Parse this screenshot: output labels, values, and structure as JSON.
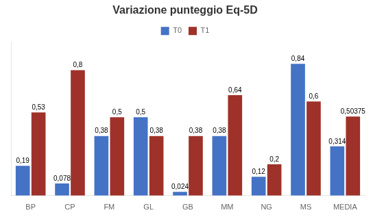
{
  "chart_data": {
    "type": "bar",
    "title": "Variazione punteggio Eq-5D",
    "categories": [
      "BP",
      "CP",
      "FM",
      "GL",
      "GB",
      "MM",
      "NG",
      "MS",
      "MEDIA"
    ],
    "series": [
      {
        "name": "T0",
        "color": "#4472C4",
        "values": [
          0.19,
          0.078,
          0.38,
          0.5,
          0.024,
          0.38,
          0.12,
          0.84,
          0.314
        ],
        "value_labels": [
          "0,19",
          "0,078",
          "0,38",
          "0,5",
          "0,024",
          "0,38",
          "0,12",
          "0,84",
          "0,314"
        ]
      },
      {
        "name": "T1",
        "color": "#9E3129",
        "values": [
          0.53,
          0.8,
          0.5,
          0.38,
          0.38,
          0.64,
          0.2,
          0.6,
          0.50375
        ],
        "value_labels": [
          "0,53",
          "0,8",
          "0,5",
          "0,38",
          "0,38",
          "0,64",
          "0,2",
          "0,6",
          "0,50375"
        ]
      }
    ],
    "ylim": [
      0,
      0.98
    ],
    "grid": false,
    "legend": "top",
    "data_labels": true,
    "tick_labels": "x"
  }
}
